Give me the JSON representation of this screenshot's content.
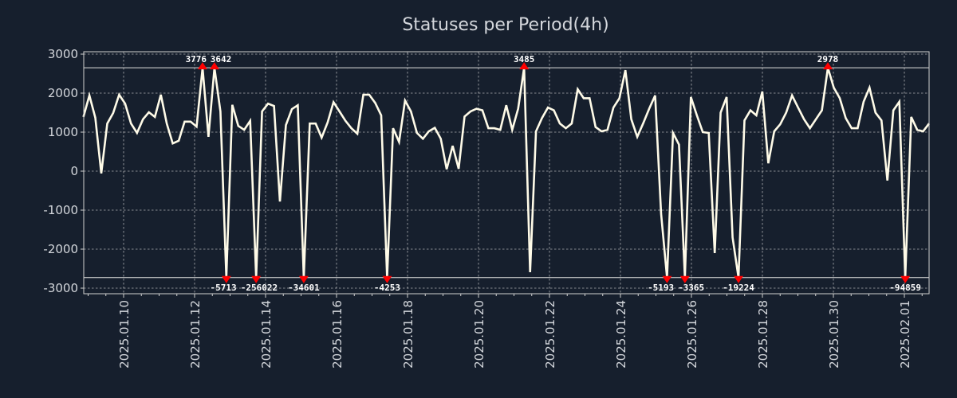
{
  "chart_data": {
    "type": "line",
    "title": "Statuses per Period(4h)",
    "xlabel": "",
    "ylabel": "",
    "x_start": "2025-01-08 20:00",
    "x_end": "2025-02-01 16:00",
    "interval": "4h",
    "ylim": [
      -3140,
      3060
    ],
    "yticks": [
      3000,
      2000,
      1000,
      0,
      -1000,
      -2000,
      -3000
    ],
    "ytick_labels": [
      "3000",
      "2000",
      "1000",
      "0",
      "-1000",
      "-2000",
      "-3000"
    ],
    "xtick_labels": [
      "2025.01.10",
      "2025.01.12",
      "2025.01.14",
      "2025.01.16",
      "2025.01.18",
      "2025.01.20",
      "2025.01.22",
      "2025.01.24",
      "2025.01.26",
      "2025.01.28",
      "2025.01.30",
      "2025.02.01"
    ],
    "upper_threshold": 2650,
    "lower_threshold": -2730,
    "grid": true,
    "series": [
      {
        "name": "statuses",
        "color": "#fffbe8",
        "values": [
          1390,
          1940,
          1370,
          -60,
          1220,
          1490,
          1960,
          1730,
          1220,
          980,
          1330,
          1510,
          1390,
          1960,
          1220,
          710,
          780,
          1270,
          1270,
          1140,
          2650,
          880,
          2650,
          1530,
          -2730,
          1700,
          1160,
          1060,
          1290,
          -2730,
          1530,
          1730,
          1670,
          -780,
          1180,
          1590,
          1690,
          -2730,
          1220,
          1220,
          860,
          1250,
          1770,
          1530,
          1290,
          1100,
          960,
          1960,
          1960,
          1750,
          1430,
          -2730,
          1100,
          750,
          1810,
          1530,
          980,
          830,
          1020,
          1110,
          830,
          50,
          650,
          60,
          1400,
          1530,
          1600,
          1560,
          1100,
          1100,
          1060,
          1690,
          1060,
          1600,
          2650,
          -2590,
          1020,
          1360,
          1630,
          1560,
          1220,
          1100,
          1220,
          2100,
          1870,
          1870,
          1130,
          1020,
          1060,
          1630,
          1870,
          2590,
          1330,
          880,
          1230,
          1600,
          1940,
          -1100,
          -2730,
          980,
          680,
          -2730,
          1900,
          1430,
          1000,
          980,
          -2100,
          1500,
          1900,
          -1700,
          -2730,
          1300,
          1560,
          1430,
          2040,
          200,
          1020,
          1200,
          1500,
          1940,
          1630,
          1330,
          1100,
          1330,
          1560,
          2650,
          2140,
          1870,
          1360,
          1100,
          1100,
          1780,
          2140,
          1500,
          1300,
          -240,
          1560,
          1780,
          -2730,
          1390,
          1060,
          1020,
          1220
        ]
      }
    ],
    "annotations": [
      {
        "index": 20,
        "type": "max",
        "label": "3776"
      },
      {
        "index": 22,
        "type": "max",
        "label": "3642"
      },
      {
        "index": 74,
        "type": "max",
        "label": "3485"
      },
      {
        "index": 125,
        "type": "max",
        "label": "2978"
      },
      {
        "index": 24,
        "type": "min",
        "label": "-5713"
      },
      {
        "index": 29,
        "type": "min",
        "label": "-256022"
      },
      {
        "index": 37,
        "type": "min",
        "label": "-34601"
      },
      {
        "index": 51,
        "type": "min",
        "label": "-4253"
      },
      {
        "index": 98,
        "type": "min",
        "label": "-5193"
      },
      {
        "index": 101,
        "type": "min",
        "label": "-3365"
      },
      {
        "index": 110,
        "type": "min",
        "label": "-19224"
      },
      {
        "index": 138,
        "type": "min",
        "label": "-94859"
      }
    ],
    "marker_color": "#ff0000"
  }
}
